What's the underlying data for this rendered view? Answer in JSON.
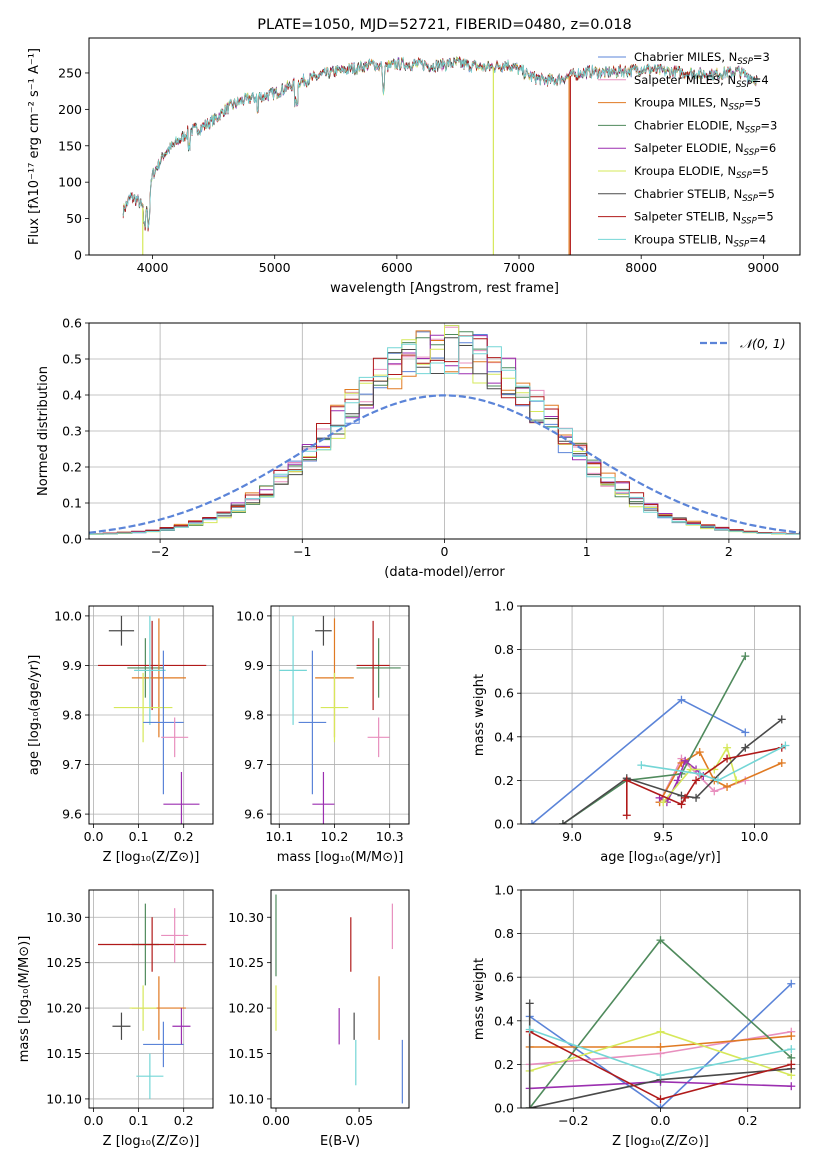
{
  "colors": {
    "chabrier_miles": "#5b84d8",
    "salpeter_miles": "#e88fbe",
    "kroupa_miles": "#e07a22",
    "chabrier_elodie": "#4f8a5c",
    "salpeter_elodie": "#9b2fb0",
    "kroupa_elodie": "#d6e85a",
    "chabrier_stelib": "#4a4a4a",
    "salpeter_stelib": "#b01a1a",
    "kroupa_stelib": "#74d6d6",
    "normal": "#5b84d8"
  },
  "chart_data": [
    {
      "id": "spectrum",
      "type": "line",
      "title": "PLATE=1050, MJD=52721, FIBERID=0480, z=0.018",
      "xlabel": "wavelength [Angstrom, rest frame]",
      "ylabel": "Flux [fλ10⁻¹⁷ erg cm⁻² s⁻¹ A⁻¹]",
      "xlim": [
        3480,
        9300
      ],
      "ylim": [
        0,
        298
      ],
      "xticks": [
        4000,
        5000,
        6000,
        7000,
        8000,
        9000
      ],
      "yticks": [
        0,
        50,
        100,
        150,
        200,
        250
      ],
      "legend_position": "upper right",
      "continuum": {
        "x": [
          3760,
          3820,
          3880,
          3920,
          3960,
          4000,
          4100,
          4200,
          4300,
          4400,
          4500,
          4600,
          4700,
          4800,
          4900,
          5000,
          5100,
          5200,
          5300,
          5400,
          5500,
          5600,
          5700,
          5800,
          5900,
          6000,
          6100,
          6200,
          6300,
          6400,
          6500,
          6600,
          6700,
          6800,
          6900,
          7000,
          7100,
          7200,
          7300,
          7400,
          7500,
          7600,
          7700,
          7800,
          7900,
          8000,
          8200,
          8400,
          8600,
          8800,
          8950
        ],
        "y": [
          60,
          80,
          75,
          65,
          60,
          110,
          140,
          155,
          170,
          175,
          185,
          200,
          210,
          215,
          218,
          222,
          230,
          238,
          242,
          248,
          252,
          255,
          258,
          262,
          258,
          262,
          262,
          262,
          260,
          262,
          264,
          260,
          258,
          258,
          262,
          255,
          245,
          240,
          240,
          245,
          250,
          252,
          250,
          252,
          253,
          256,
          252,
          250,
          248,
          252,
          240
        ]
      },
      "series": [
        {
          "name": "Chabrier MILES, N_SSP=3",
          "label_main": "Chabrier MILES, N",
          "label_sub": "SSP",
          "label_tail": "=3",
          "color_key": "chabrier_miles"
        },
        {
          "name": "Salpeter MILES, N_SSP=4",
          "label_main": "Salpeter MILES, N",
          "label_sub": "SSP",
          "label_tail": "=4",
          "color_key": "salpeter_miles"
        },
        {
          "name": "Kroupa MILES, N_SSP=5",
          "label_main": "Kroupa MILES, N",
          "label_sub": "SSP",
          "label_tail": "=5",
          "color_key": "kroupa_miles"
        },
        {
          "name": "Chabrier ELODIE, N_SSP=3",
          "label_main": "Chabrier ELODIE, N",
          "label_sub": "SSP",
          "label_tail": "=3",
          "color_key": "chabrier_elodie"
        },
        {
          "name": "Salpeter ELODIE, N_SSP=6",
          "label_main": "Salpeter ELODIE, N",
          "label_sub": "SSP",
          "label_tail": "=6",
          "color_key": "salpeter_elodie"
        },
        {
          "name": "Kroupa ELODIE, N_SSP=5",
          "label_main": "Kroupa ELODIE, N",
          "label_sub": "SSP",
          "label_tail": "=5",
          "color_key": "kroupa_elodie"
        },
        {
          "name": "Chabrier STELIB, N_SSP=5",
          "label_main": "Chabrier STELIB, N",
          "label_sub": "SSP",
          "label_tail": "=5",
          "color_key": "chabrier_stelib"
        },
        {
          "name": "Salpeter STELIB, N_SSP=5",
          "label_main": "Salpeter STELIB, N",
          "label_sub": "SSP",
          "label_tail": "=5",
          "color_key": "salpeter_stelib"
        },
        {
          "name": "Kroupa STELIB, N_SSP=4",
          "label_main": "Kroupa STELIB, N",
          "label_sub": "SSP",
          "label_tail": "=4",
          "color_key": "kroupa_stelib"
        }
      ],
      "cutoffs": [
        {
          "color_key": "kroupa_elodie",
          "x": [
            3920,
            6790
          ]
        },
        {
          "color_key": "salpeter_stelib",
          "x": [
            7420
          ]
        },
        {
          "color_key": "kroupa_miles",
          "x": [
            7410
          ]
        }
      ]
    },
    {
      "id": "residuals",
      "type": "line",
      "xlabel": "(data-model)/error",
      "ylabel": "Normed distribution",
      "xlim": [
        -2.5,
        2.5
      ],
      "ylim": [
        0,
        0.6
      ],
      "xticks": [
        -2,
        -1,
        0,
        1,
        2
      ],
      "yticks": [
        0.0,
        0.1,
        0.2,
        0.3,
        0.4,
        0.5,
        0.6
      ],
      "grid": true,
      "bin_width": 0.1,
      "legend": "𝒩(0, 1)",
      "legend_position": "upper right"
    },
    {
      "id": "z-age",
      "type": "scatter",
      "xlabel": "Z [log₁₀(Z/Z⊙)]",
      "ylabel": "age  [log₁₀(age/yr)]",
      "xlim": [
        -0.01,
        0.265
      ],
      "ylim": [
        9.58,
        10.02
      ],
      "xticks": [
        0.0,
        0.1,
        0.2
      ],
      "yticks": [
        9.6,
        9.7,
        9.8,
        9.9,
        10.0
      ],
      "grid": true,
      "points": [
        {
          "c": "chabrier_stelib",
          "x": 0.062,
          "xerr": 0.028,
          "y": 9.97,
          "yerr": 0.03
        },
        {
          "c": "chabrier_elodie",
          "x": 0.115,
          "xerr": 0.04,
          "y": 9.895,
          "yerr": 0.06
        },
        {
          "c": "salpeter_stelib",
          "x": 0.13,
          "xerr": 0.12,
          "y": 9.9,
          "yerr": 0.09
        },
        {
          "c": "kroupa_miles",
          "x": 0.145,
          "xerr": 0.06,
          "y": 9.875,
          "yerr": 0.12
        },
        {
          "c": "kroupa_stelib",
          "x": 0.125,
          "xerr": 0.035,
          "y": 9.89,
          "yerr": 0.11
        },
        {
          "c": "kroupa_elodie",
          "x": 0.11,
          "xerr": 0.065,
          "y": 9.815,
          "yerr": 0.07
        },
        {
          "c": "chabrier_miles",
          "x": 0.155,
          "xerr": 0.045,
          "y": 9.785,
          "yerr": 0.145
        },
        {
          "c": "salpeter_miles",
          "x": 0.18,
          "xerr": 0.03,
          "y": 9.755,
          "yerr": 0.04
        },
        {
          "c": "salpeter_elodie",
          "x": 0.195,
          "xerr": 0.04,
          "y": 9.62,
          "yerr": 0.065
        }
      ]
    },
    {
      "id": "mass-age",
      "type": "scatter",
      "xlabel": "mass [log₁₀(M/M⊙)]",
      "ylabel": "",
      "xlim": [
        10.085,
        10.335
      ],
      "ylim": [
        9.58,
        10.02
      ],
      "xticks": [
        10.1,
        10.2,
        10.3
      ],
      "yticks": [
        9.6,
        9.7,
        9.8,
        9.9,
        10.0
      ],
      "grid": true,
      "points": [
        {
          "c": "chabrier_stelib",
          "x": 10.18,
          "xerr": 0.015,
          "y": 9.97,
          "yerr": 0.03
        },
        {
          "c": "kroupa_stelib",
          "x": 10.125,
          "xerr": 0.025,
          "y": 9.89,
          "yerr": 0.11
        },
        {
          "c": "chabrier_elodie",
          "x": 10.28,
          "xerr": 0.04,
          "y": 9.895,
          "yerr": 0.06
        },
        {
          "c": "salpeter_stelib",
          "x": 10.27,
          "xerr": 0.03,
          "y": 9.9,
          "yerr": 0.09
        },
        {
          "c": "kroupa_miles",
          "x": 10.2,
          "xerr": 0.035,
          "y": 9.875,
          "yerr": 0.12
        },
        {
          "c": "kroupa_elodie",
          "x": 10.2,
          "xerr": 0.025,
          "y": 9.815,
          "yerr": 0.07
        },
        {
          "c": "chabrier_miles",
          "x": 10.16,
          "xerr": 0.025,
          "y": 9.785,
          "yerr": 0.145
        },
        {
          "c": "salpeter_miles",
          "x": 10.28,
          "xerr": 0.02,
          "y": 9.755,
          "yerr": 0.04
        },
        {
          "c": "salpeter_elodie",
          "x": 10.18,
          "xerr": 0.02,
          "y": 9.62,
          "yerr": 0.065
        }
      ]
    },
    {
      "id": "age-weight",
      "type": "line",
      "xlabel": "age  [log₁₀(age/yr)]",
      "ylabel": "mass weight",
      "xlim": [
        8.72,
        10.25
      ],
      "ylim": [
        0,
        1
      ],
      "xticks": [
        9.0,
        9.5,
        10.0
      ],
      "yticks": [
        0.0,
        0.2,
        0.4,
        0.6,
        0.8,
        1.0
      ],
      "grid": true,
      "series": [
        {
          "c": "chabrier_miles",
          "x": [
            8.78,
            9.6,
            9.95
          ],
          "y": [
            0.0,
            0.57,
            0.42
          ]
        },
        {
          "c": "salpeter_miles",
          "x": [
            9.48,
            9.6,
            9.78,
            9.95
          ],
          "y": [
            0.1,
            0.3,
            0.15,
            0.2
          ]
        },
        {
          "c": "kroupa_miles",
          "x": [
            9.48,
            9.6,
            9.7,
            9.78,
            9.85,
            10.15
          ],
          "y": [
            0.1,
            0.28,
            0.33,
            0.2,
            0.17,
            0.28
          ]
        },
        {
          "c": "chabrier_elodie",
          "x": [
            8.95,
            9.3,
            9.6,
            9.95
          ],
          "y": [
            0.0,
            0.2,
            0.23,
            0.77
          ]
        },
        {
          "c": "salpeter_elodie",
          "x": [
            9.48,
            9.52,
            9.58,
            9.62,
            9.68,
            9.72
          ],
          "y": [
            0.12,
            0.1,
            0.2,
            0.29,
            0.25,
            0.22
          ]
        },
        {
          "c": "kroupa_elodie",
          "x": [
            9.5,
            9.65,
            9.78,
            9.85,
            9.9
          ],
          "y": [
            0.1,
            0.25,
            0.25,
            0.35,
            0.2
          ]
        },
        {
          "c": "chabrier_stelib",
          "x": [
            8.95,
            9.3,
            9.6,
            9.68,
            9.95,
            10.15
          ],
          "y": [
            0.0,
            0.21,
            0.13,
            0.12,
            0.35,
            0.48
          ]
        },
        {
          "c": "salpeter_stelib",
          "x": [
            9.3,
            9.3,
            9.6,
            9.62,
            9.68,
            9.85,
            10.15
          ],
          "y": [
            0.04,
            0.2,
            0.09,
            0.12,
            0.2,
            0.3,
            0.35
          ]
        },
        {
          "c": "kroupa_stelib",
          "x": [
            9.38,
            9.7,
            9.8,
            10.17
          ],
          "y": [
            0.27,
            0.23,
            0.2,
            0.36
          ]
        }
      ]
    },
    {
      "id": "z-mass",
      "type": "scatter",
      "xlabel": "Z [log₁₀(Z/Z⊙)]",
      "ylabel": "mass [log₁₀(M/M⊙)]",
      "xlim": [
        -0.01,
        0.265
      ],
      "ylim": [
        10.09,
        10.33
      ],
      "xticks": [
        0.0,
        0.1,
        0.2
      ],
      "yticks": [
        10.1,
        10.15,
        10.2,
        10.25,
        10.3
      ],
      "grid": true,
      "points": [
        {
          "c": "chabrier_stelib",
          "x": 0.062,
          "xerr": 0.02,
          "y": 10.18,
          "yerr": 0.015
        },
        {
          "c": "chabrier_elodie",
          "x": 0.115,
          "xerr": 0.03,
          "y": 10.27,
          "yerr": 0.045
        },
        {
          "c": "salpeter_stelib",
          "x": 0.13,
          "xerr": 0.12,
          "y": 10.27,
          "yerr": 0.03
        },
        {
          "c": "kroupa_miles",
          "x": 0.145,
          "xerr": 0.06,
          "y": 10.2,
          "yerr": 0.035
        },
        {
          "c": "kroupa_elodie",
          "x": 0.11,
          "xerr": 0.03,
          "y": 10.2,
          "yerr": 0.025
        },
        {
          "c": "kroupa_stelib",
          "x": 0.125,
          "xerr": 0.03,
          "y": 10.125,
          "yerr": 0.025
        },
        {
          "c": "chabrier_miles",
          "x": 0.155,
          "xerr": 0.045,
          "y": 10.16,
          "yerr": 0.025
        },
        {
          "c": "salpeter_miles",
          "x": 0.18,
          "xerr": 0.03,
          "y": 10.28,
          "yerr": 0.03
        },
        {
          "c": "salpeter_elodie",
          "x": 0.195,
          "xerr": 0.02,
          "y": 10.18,
          "yerr": 0.02
        }
      ]
    },
    {
      "id": "ebv-mass",
      "type": "scatter",
      "xlabel": "E(B-V)",
      "ylabel": "",
      "xlim": [
        -0.003,
        0.08
      ],
      "ylim": [
        10.09,
        10.33
      ],
      "xticks": [
        0.0,
        0.05
      ],
      "yticks": [
        10.1,
        10.15,
        10.2,
        10.25,
        10.3
      ],
      "grid": false,
      "points": [
        {
          "c": "chabrier_elodie",
          "x": 0.0,
          "y": 10.28,
          "yerr": 0.045
        },
        {
          "c": "kroupa_elodie",
          "x": 0.0,
          "y": 10.2,
          "yerr": 0.025
        },
        {
          "c": "salpeter_elodie",
          "x": 0.038,
          "y": 10.18,
          "yerr": 0.02
        },
        {
          "c": "salpeter_stelib",
          "x": 0.045,
          "y": 10.27,
          "yerr": 0.03
        },
        {
          "c": "chabrier_stelib",
          "x": 0.047,
          "y": 10.18,
          "yerr": 0.015
        },
        {
          "c": "kroupa_stelib",
          "x": 0.048,
          "y": 10.14,
          "yerr": 0.025
        },
        {
          "c": "kroupa_miles",
          "x": 0.062,
          "y": 10.2,
          "yerr": 0.035
        },
        {
          "c": "salpeter_miles",
          "x": 0.07,
          "y": 10.29,
          "yerr": 0.025
        },
        {
          "c": "chabrier_miles",
          "x": 0.076,
          "y": 10.13,
          "yerr": 0.035
        }
      ]
    },
    {
      "id": "z-weight",
      "type": "line",
      "xlabel": "Z [log₁₀(Z/Z⊙)]",
      "ylabel": "mass weight",
      "xlim": [
        -0.32,
        0.32
      ],
      "ylim": [
        0,
        1
      ],
      "xticks": [
        -0.2,
        0.0,
        0.2
      ],
      "yticks": [
        0.0,
        0.2,
        0.4,
        0.6,
        0.8,
        1.0
      ],
      "grid": true,
      "series": [
        {
          "c": "chabrier_miles",
          "x": [
            -0.3,
            0.0,
            0.3
          ],
          "y": [
            0.42,
            0.0,
            0.57
          ]
        },
        {
          "c": "salpeter_miles",
          "x": [
            -0.3,
            0.0,
            0.3
          ],
          "y": [
            0.2,
            0.25,
            0.35
          ]
        },
        {
          "c": "kroupa_miles",
          "x": [
            -0.3,
            0.0,
            0.3
          ],
          "y": [
            0.28,
            0.28,
            0.33
          ]
        },
        {
          "c": "chabrier_elodie",
          "x": [
            -0.3,
            0.0,
            0.3
          ],
          "y": [
            0.0,
            0.77,
            0.23
          ]
        },
        {
          "c": "salpeter_elodie",
          "x": [
            -0.3,
            0.0,
            0.3
          ],
          "y": [
            0.09,
            0.12,
            0.1
          ]
        },
        {
          "c": "kroupa_elodie",
          "x": [
            -0.3,
            0.0,
            0.3
          ],
          "y": [
            0.17,
            0.35,
            0.15
          ]
        },
        {
          "c": "chabrier_stelib",
          "x": [
            -0.3,
            -0.3,
            0.0,
            0.3
          ],
          "y": [
            0.48,
            0.0,
            0.13,
            0.18
          ]
        },
        {
          "c": "salpeter_stelib",
          "x": [
            -0.3,
            0.0,
            0.3
          ],
          "y": [
            0.35,
            0.04,
            0.2
          ]
        },
        {
          "c": "kroupa_stelib",
          "x": [
            -0.3,
            0.0,
            0.3
          ],
          "y": [
            0.36,
            0.15,
            0.27
          ]
        }
      ]
    }
  ]
}
